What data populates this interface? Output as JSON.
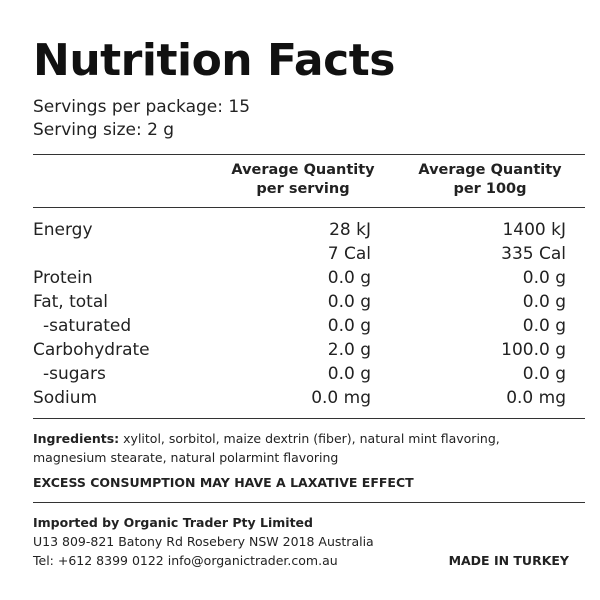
{
  "title": "Nutrition Facts",
  "servings_per_package": "Servings per package: 15",
  "serving_size": "Serving size: 2 g",
  "columns": {
    "per_serving": [
      "Average Quantity",
      "per serving"
    ],
    "per_100g": [
      "Average Quantity",
      "per 100g"
    ]
  },
  "rows": [
    {
      "label": "Energy",
      "per_serving": "28 kJ",
      "per_100g": "1400 kJ"
    },
    {
      "label": "",
      "per_serving": "7 Cal",
      "per_100g": "335 Cal"
    },
    {
      "label": "Protein",
      "per_serving": "0.0 g",
      "per_100g": "0.0 g"
    },
    {
      "label": "Fat, total",
      "per_serving": "0.0 g",
      "per_100g": "0.0 g"
    },
    {
      "label": "-saturated",
      "per_serving": "0.0 g",
      "per_100g": "0.0 g"
    },
    {
      "label": "Carbohydrate",
      "per_serving": "2.0 g",
      "per_100g": "100.0 g"
    },
    {
      "label": "-sugars",
      "per_serving": "0.0 g",
      "per_100g": "0.0 g"
    },
    {
      "label": "Sodium",
      "per_serving": "0.0 mg",
      "per_100g": "0.0 mg"
    }
  ],
  "ingredients_label": "Ingredients:",
  "ingredients_text": "xylitol, sorbitol, maize dextrin (fiber), natural mint flavoring, magnesium stearate, natural polarmint flavoring",
  "warning": "EXCESS CONSUMPTION MAY HAVE A LAXATIVE EFFECT",
  "importer": {
    "name": "Imported by Organic Trader Pty Limited",
    "address": "U13 809-821 Batony Rd Rosebery NSW 2018 Australia",
    "contact": "Tel: +612 8399 0122 info@organictrader.com.au"
  },
  "made_in": "MADE IN TURKEY"
}
